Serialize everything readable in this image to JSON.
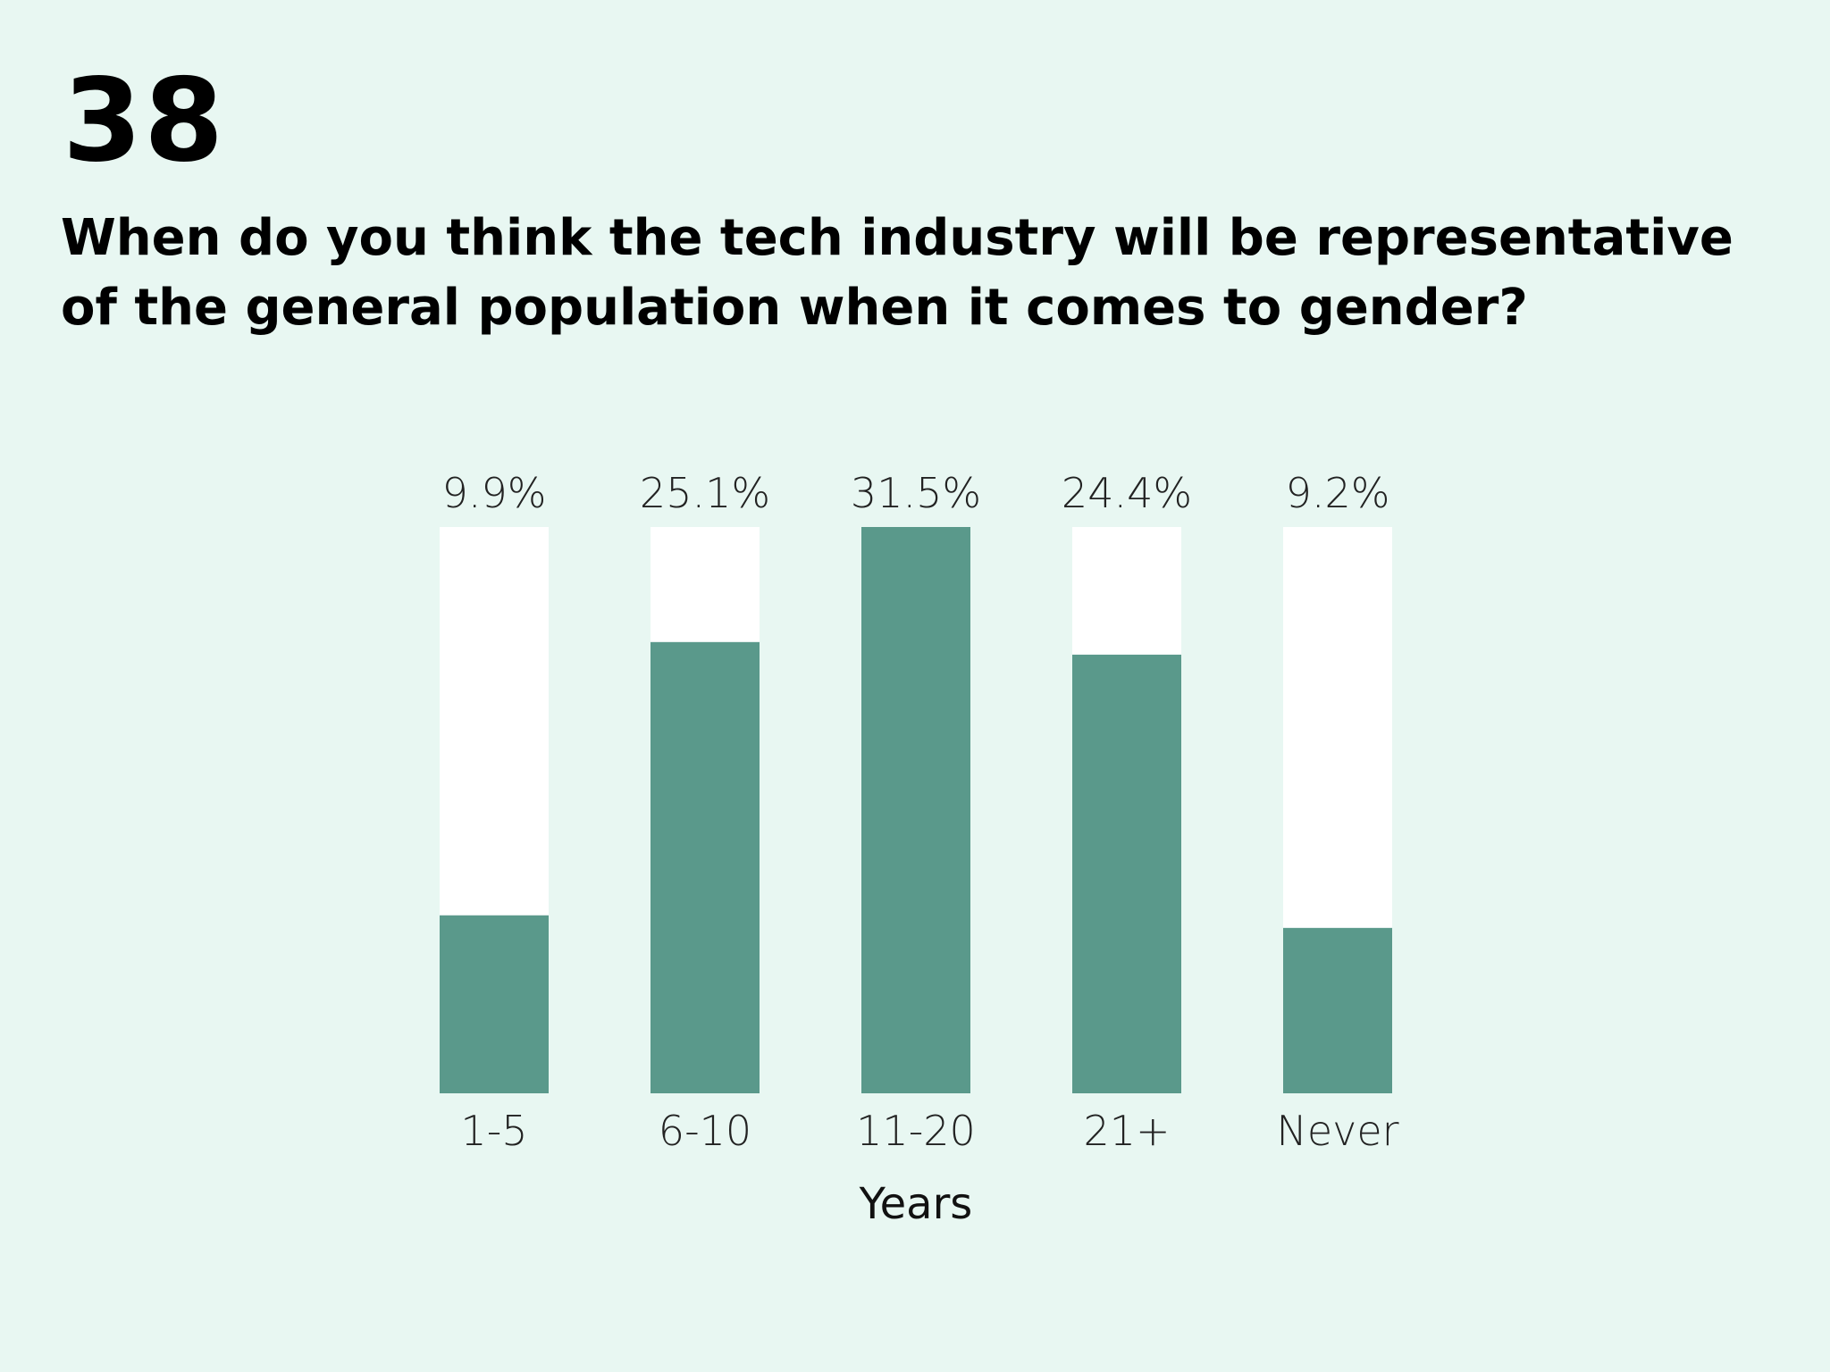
{
  "page_number": "38",
  "question": "When do you think the tech industry will be representative of the general population when it comes to gender?",
  "colors": {
    "background": "#e8f7f2",
    "bar_fill": "#5a998b",
    "bar_track": "#ffffff"
  },
  "chart_data": {
    "type": "bar",
    "title": "",
    "xlabel": "Years",
    "ylabel": "",
    "categories": [
      "1-5",
      "6-10",
      "11-20",
      "21+",
      "Never"
    ],
    "values": [
      9.9,
      25.1,
      31.5,
      24.4,
      9.2
    ],
    "value_labels": [
      "9.9%",
      "25.1%",
      "31.5%",
      "24.4%",
      "9.2%"
    ],
    "ylim": [
      0,
      31.5
    ],
    "grid": false,
    "legend": "none"
  }
}
